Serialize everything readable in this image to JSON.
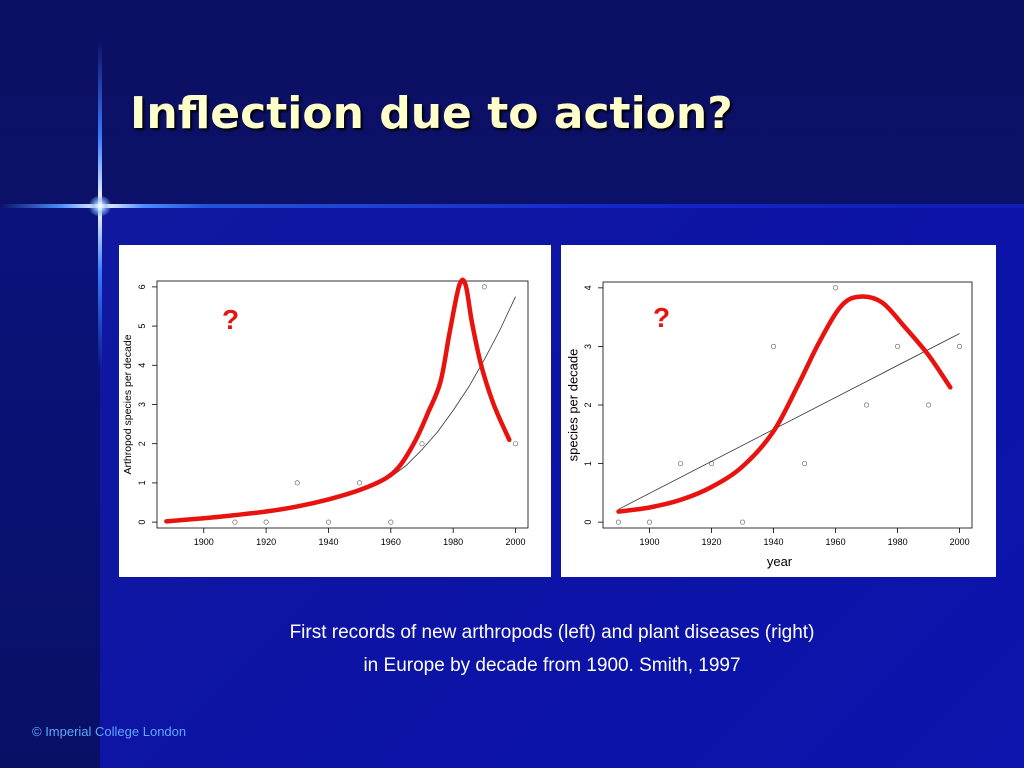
{
  "slide": {
    "title": "Inflection due to action?",
    "caption_line1": "First records of new arthropods (left) and plant diseases (right)",
    "caption_line2": "in Europe by decade from 1900.  Smith, 1997",
    "footer": "© Imperial College London"
  },
  "colors": {
    "title": "#ffffcc",
    "curve": "#e8130f",
    "background": "#0a1170"
  },
  "chart_data": [
    {
      "type": "scatter",
      "xlabel": "",
      "ylabel": "Arthropod species per decade",
      "annotation": "?",
      "xlim": [
        1885,
        2004
      ],
      "ylim": [
        -0.15,
        6.15
      ],
      "xticks": [
        1900,
        1920,
        1940,
        1960,
        1980,
        2000
      ],
      "yticks": [
        0,
        1,
        2,
        3,
        4,
        5,
        6
      ],
      "points": [
        {
          "x": 1910,
          "y": 0
        },
        {
          "x": 1920,
          "y": 0
        },
        {
          "x": 1930,
          "y": 1
        },
        {
          "x": 1940,
          "y": 0
        },
        {
          "x": 1950,
          "y": 1
        },
        {
          "x": 1960,
          "y": 0
        },
        {
          "x": 1970,
          "y": 2
        },
        {
          "x": 1990,
          "y": 6
        },
        {
          "x": 2000,
          "y": 2
        }
      ],
      "fit_line": [
        [
          1960,
          1.15
        ],
        [
          1965,
          1.45
        ],
        [
          1970,
          1.85
        ],
        [
          1975,
          2.3
        ],
        [
          1980,
          2.85
        ],
        [
          1985,
          3.45
        ],
        [
          1990,
          4.15
        ],
        [
          1995,
          4.9
        ],
        [
          2000,
          5.75
        ]
      ],
      "red_curve": [
        [
          1888,
          0.02
        ],
        [
          1900,
          0.1
        ],
        [
          1910,
          0.18
        ],
        [
          1920,
          0.27
        ],
        [
          1930,
          0.4
        ],
        [
          1940,
          0.58
        ],
        [
          1950,
          0.82
        ],
        [
          1958,
          1.1
        ],
        [
          1963,
          1.45
        ],
        [
          1968,
          2.1
        ],
        [
          1972,
          2.8
        ],
        [
          1976,
          3.6
        ],
        [
          1979,
          4.9
        ],
        [
          1982,
          6.05
        ],
        [
          1984,
          6.05
        ],
        [
          1986,
          5.1
        ],
        [
          1989,
          4.0
        ],
        [
          1993,
          3.0
        ],
        [
          1998,
          2.1
        ]
      ]
    },
    {
      "type": "scatter",
      "xlabel": "year",
      "ylabel": "species per decade",
      "annotation": "?",
      "xlim": [
        1885,
        2004
      ],
      "ylim": [
        -0.1,
        4.1
      ],
      "xticks": [
        1900,
        1920,
        1940,
        1960,
        1980,
        2000
      ],
      "yticks": [
        0,
        1,
        2,
        3,
        4
      ],
      "points": [
        {
          "x": 1890,
          "y": 0
        },
        {
          "x": 1900,
          "y": 0
        },
        {
          "x": 1910,
          "y": 1
        },
        {
          "x": 1920,
          "y": 1
        },
        {
          "x": 1930,
          "y": 0
        },
        {
          "x": 1940,
          "y": 3
        },
        {
          "x": 1950,
          "y": 1
        },
        {
          "x": 1960,
          "y": 4
        },
        {
          "x": 1970,
          "y": 2
        },
        {
          "x": 1980,
          "y": 3
        },
        {
          "x": 1990,
          "y": 2
        },
        {
          "x": 2000,
          "y": 3
        }
      ],
      "fit_line": [
        [
          1890,
          0.22
        ],
        [
          2000,
          3.22
        ]
      ],
      "red_curve": [
        [
          1890,
          0.18
        ],
        [
          1900,
          0.25
        ],
        [
          1910,
          0.38
        ],
        [
          1920,
          0.6
        ],
        [
          1930,
          0.95
        ],
        [
          1940,
          1.55
        ],
        [
          1948,
          2.35
        ],
        [
          1955,
          3.1
        ],
        [
          1962,
          3.7
        ],
        [
          1968,
          3.85
        ],
        [
          1975,
          3.75
        ],
        [
          1982,
          3.35
        ],
        [
          1990,
          2.85
        ],
        [
          1997,
          2.3
        ]
      ]
    }
  ]
}
